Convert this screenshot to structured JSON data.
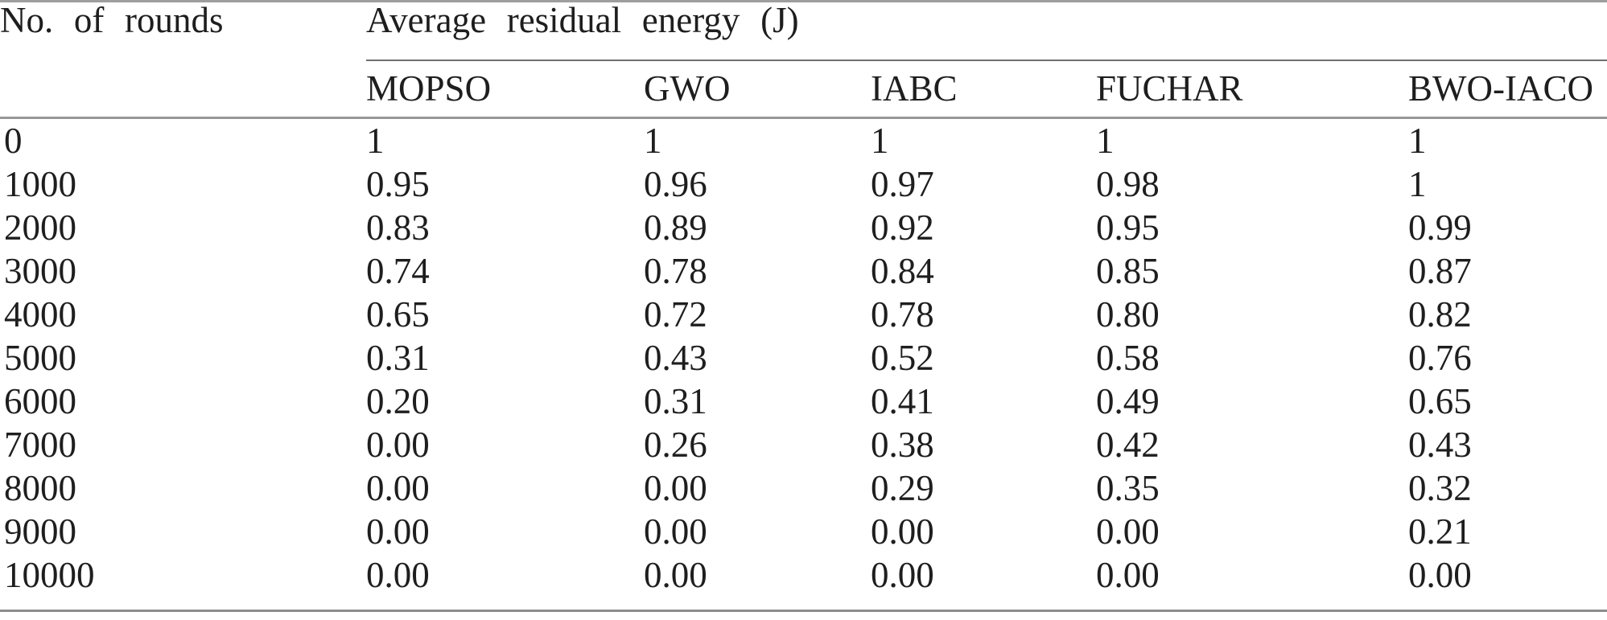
{
  "table": {
    "row_header_label": "No. of rounds",
    "group_header": "Average residual energy (J)",
    "columns": [
      "MOPSO",
      "GWO",
      "IABC",
      "FUCHAR",
      "BWO-IACO"
    ],
    "rows": [
      {
        "round": "0",
        "values": [
          "1",
          "1",
          "1",
          "1",
          "1"
        ]
      },
      {
        "round": "1000",
        "values": [
          "0.95",
          "0.96",
          "0.97",
          "0.98",
          "1"
        ]
      },
      {
        "round": "2000",
        "values": [
          "0.83",
          "0.89",
          "0.92",
          "0.95",
          "0.99"
        ]
      },
      {
        "round": "3000",
        "values": [
          "0.74",
          "0.78",
          "0.84",
          "0.85",
          "0.87"
        ]
      },
      {
        "round": "4000",
        "values": [
          "0.65",
          "0.72",
          "0.78",
          "0.80",
          "0.82"
        ]
      },
      {
        "round": "5000",
        "values": [
          "0.31",
          "0.43",
          "0.52",
          "0.58",
          "0.76"
        ]
      },
      {
        "round": "6000",
        "values": [
          "0.20",
          "0.31",
          "0.41",
          "0.49",
          "0.65"
        ]
      },
      {
        "round": "7000",
        "values": [
          "0.00",
          "0.26",
          "0.38",
          "0.42",
          "0.43"
        ]
      },
      {
        "round": "8000",
        "values": [
          "0.00",
          "0.00",
          "0.29",
          "0.35",
          "0.32"
        ]
      },
      {
        "round": "9000",
        "values": [
          "0.00",
          "0.00",
          "0.00",
          "0.00",
          "0.21"
        ]
      },
      {
        "round": "10000",
        "values": [
          "0.00",
          "0.00",
          "0.00",
          "0.00",
          "0.00"
        ]
      }
    ]
  },
  "chart_data": {
    "type": "table",
    "title": "Average residual energy (J)",
    "xlabel": "No. of rounds",
    "x": [
      0,
      1000,
      2000,
      3000,
      4000,
      5000,
      6000,
      7000,
      8000,
      9000,
      10000
    ],
    "series": [
      {
        "name": "MOPSO",
        "values": [
          1,
          0.95,
          0.83,
          0.74,
          0.65,
          0.31,
          0.2,
          0.0,
          0.0,
          0.0,
          0.0
        ]
      },
      {
        "name": "GWO",
        "values": [
          1,
          0.96,
          0.89,
          0.78,
          0.72,
          0.43,
          0.31,
          0.26,
          0.0,
          0.0,
          0.0
        ]
      },
      {
        "name": "IABC",
        "values": [
          1,
          0.97,
          0.92,
          0.84,
          0.78,
          0.52,
          0.41,
          0.38,
          0.29,
          0.0,
          0.0
        ]
      },
      {
        "name": "FUCHAR",
        "values": [
          1,
          0.98,
          0.95,
          0.85,
          0.8,
          0.58,
          0.49,
          0.42,
          0.35,
          0.0,
          0.0
        ]
      },
      {
        "name": "BWO-IACO",
        "values": [
          1,
          1.0,
          0.99,
          0.87,
          0.82,
          0.76,
          0.65,
          0.43,
          0.32,
          0.21,
          0.0
        ]
      }
    ]
  },
  "colors": {
    "background": "#ffffff",
    "text": "#1e1e1e",
    "rule_gray": "#979797",
    "rule_dark": "#6f6f6f"
  }
}
